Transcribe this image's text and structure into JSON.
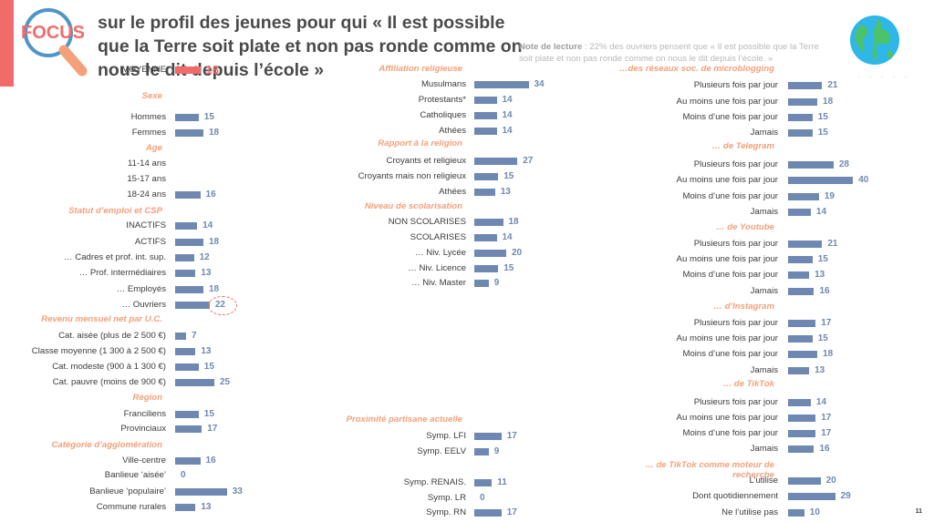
{
  "header": {
    "logo_text": "FOCUS",
    "title": "sur le profil des jeunes pour qui « Il est possible que la Terre soit plate et non pas ronde comme on nous le dit depuis l’école »",
    "note_label": "Note de lecture",
    "note_text": " : 22% des ouvriers pensent que « Il est possible que la Terre soit plate et non pas ronde comme on nous le dit depuis l’école. »",
    "page_number": "11",
    "accent_color": "#f26b6b",
    "bar_color": "#6f88b2",
    "section_color": "#f4a07a"
  },
  "chart_data": [
    {
      "type": "bar",
      "orientation": "horizontal",
      "unit": "%",
      "column": "left",
      "groups": [
        {
          "title": "",
          "items": [
            {
              "label": "MOYENNE",
              "value": 16,
              "highlight": true
            }
          ]
        },
        {
          "title": "Sexe",
          "items": [
            {
              "label": "Hommes",
              "value": 15
            },
            {
              "label": "Femmes",
              "value": 18
            }
          ]
        },
        {
          "title": "Age",
          "items": [
            {
              "label": "11-14 ans",
              "value": null
            },
            {
              "label": "15-17 ans",
              "value": null
            },
            {
              "label": "18-24 ans",
              "value": 16
            }
          ]
        },
        {
          "title": "Statut d’emploi et CSP",
          "items": [
            {
              "label": "INACTIFS",
              "value": 14
            },
            {
              "label": "ACTIFS",
              "value": 18
            },
            {
              "label": "… Cadres et prof. int. sup.",
              "value": 12
            },
            {
              "label": "… Prof. intermédiaires",
              "value": 13
            },
            {
              "label": "… Employés",
              "value": 18
            },
            {
              "label": "… Ouvriers",
              "value": 22,
              "circled": true
            }
          ]
        },
        {
          "title": "Revenu mensuel net par U.C.",
          "items": [
            {
              "label": "Cat. aisée (plus de 2 500 €)",
              "value": 7
            },
            {
              "label": "Classe moyenne (1 300 à 2 500 €)",
              "value": 13
            },
            {
              "label": "Cat. modeste (900 à 1 300 €)",
              "value": 15
            },
            {
              "label": "Cat. pauvre (moins de 900 €)",
              "value": 25
            }
          ]
        },
        {
          "title": "Région",
          "items": [
            {
              "label": "Franciliens",
              "value": 15
            },
            {
              "label": "Provinciaux",
              "value": 17
            }
          ]
        },
        {
          "title": "Catégorie d’agglomération",
          "items": [
            {
              "label": "Ville-centre",
              "value": 16
            },
            {
              "label": "Banlieue ‘aisée’",
              "value": 0
            },
            {
              "label": "Banlieue ‘populaire’",
              "value": 33
            },
            {
              "label": "Commune rurales",
              "value": 13
            }
          ]
        }
      ]
    },
    {
      "type": "bar",
      "orientation": "horizontal",
      "unit": "%",
      "column": "middle",
      "groups": [
        {
          "title": "Affiliation religieuse",
          "items": [
            {
              "label": "Musulmans",
              "value": 34
            },
            {
              "label": "Protestants*",
              "value": 14
            },
            {
              "label": "Catholiques",
              "value": 14
            },
            {
              "label": "Athées",
              "value": 14
            }
          ]
        },
        {
          "title": "Rapport à la religion",
          "items": [
            {
              "label": "Croyants et religieux",
              "value": 27
            },
            {
              "label": "Croyants mais non religieux",
              "value": 15
            },
            {
              "label": "Athées",
              "value": 13
            }
          ]
        },
        {
          "title": "Niveau de scolarisation",
          "items": [
            {
              "label": "NON SCOLARISES",
              "value": 18
            },
            {
              "label": "SCOLARISES",
              "value": 14
            },
            {
              "label": "… Niv. Lycée",
              "value": 20
            },
            {
              "label": "… Niv. Licence",
              "value": 15
            },
            {
              "label": "… Niv. Master",
              "value": 9
            }
          ]
        },
        {
          "title": "Proximité partisane actuelle",
          "items": [
            {
              "label": "Symp. LFI",
              "value": 17
            },
            {
              "label": "Symp. EELV",
              "value": 9
            },
            {
              "label": "Symp. RENAIS.",
              "value": 11
            },
            {
              "label": "Symp. LR",
              "value": 0
            },
            {
              "label": "Symp. RN",
              "value": 17
            }
          ]
        }
      ]
    },
    {
      "type": "bar",
      "orientation": "horizontal",
      "unit": "%",
      "column": "right",
      "groups": [
        {
          "title": "…des réseaux soc. de microblogging",
          "items": [
            {
              "label": "Plusieurs fois par jour",
              "value": 21
            },
            {
              "label": "Au moins une fois par jour",
              "value": 18
            },
            {
              "label": "Moins d’une fois par jour",
              "value": 15
            },
            {
              "label": "Jamais",
              "value": 15
            }
          ]
        },
        {
          "title": "… de Telegram",
          "items": [
            {
              "label": "Plusieurs fois par jour",
              "value": 28
            },
            {
              "label": "Au moins une fois par jour",
              "value": 40
            },
            {
              "label": "Moins d’une fois par jour",
              "value": 19
            },
            {
              "label": "Jamais",
              "value": 14
            }
          ]
        },
        {
          "title": "… de Youtube",
          "items": [
            {
              "label": "Plusieurs fois par jour",
              "value": 21
            },
            {
              "label": "Au moins une fois par jour",
              "value": 15
            },
            {
              "label": "Moins d’une fois par jour",
              "value": 13
            },
            {
              "label": "Jamais",
              "value": 16
            }
          ]
        },
        {
          "title": "… d’Instagram",
          "items": [
            {
              "label": "Plusieurs fois par jour",
              "value": 17
            },
            {
              "label": "Au moins une fois par jour",
              "value": 15
            },
            {
              "label": "Moins d’une fois par jour",
              "value": 18
            },
            {
              "label": "Jamais",
              "value": 13
            }
          ]
        },
        {
          "title": "… de TikTok",
          "items": [
            {
              "label": "Plusieurs fois par jour",
              "value": 14
            },
            {
              "label": "Au moins une fois par jour",
              "value": 17
            },
            {
              "label": "Moins d’une fois par jour",
              "value": 17
            },
            {
              "label": "Jamais",
              "value": 16
            }
          ]
        },
        {
          "title": "… de TikTok comme moteur de recherche",
          "items": [
            {
              "label": "L’utilise",
              "value": 20
            },
            {
              "label": "Dont quotidiennement",
              "value": 29
            },
            {
              "label": "Ne l’utilise pas",
              "value": 10
            }
          ]
        }
      ]
    }
  ]
}
